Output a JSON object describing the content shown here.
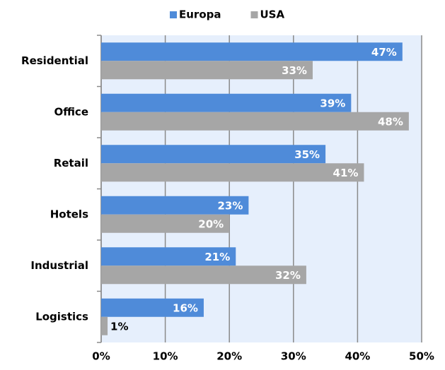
{
  "chart_data": {
    "type": "barh",
    "categories": [
      "Residential",
      "Office",
      "Retail",
      "Hotels",
      "Industrial",
      "Logistics"
    ],
    "series": [
      {
        "name": "Europa",
        "color": "#4f8bd9",
        "values": [
          47,
          39,
          35,
          23,
          21,
          16
        ],
        "value_labels": [
          "47%",
          "39%",
          "35%",
          "23%",
          "21%",
          "16%"
        ]
      },
      {
        "name": "USA",
        "color": "#a6a6a6",
        "values": [
          33,
          48,
          41,
          20,
          32,
          1
        ],
        "value_labels": [
          "33%",
          "48%",
          "41%",
          "20%",
          "32%",
          "1%"
        ]
      }
    ],
    "xlim": [
      0,
      50
    ],
    "xticks": [
      {
        "value": 0,
        "label": "0%"
      },
      {
        "value": 10,
        "label": "10%"
      },
      {
        "value": 20,
        "label": "20%"
      },
      {
        "value": 30,
        "label": "30%"
      },
      {
        "value": 40,
        "label": "40%"
      },
      {
        "value": 50,
        "label": "50%"
      }
    ],
    "grid": true,
    "legend": "top"
  }
}
